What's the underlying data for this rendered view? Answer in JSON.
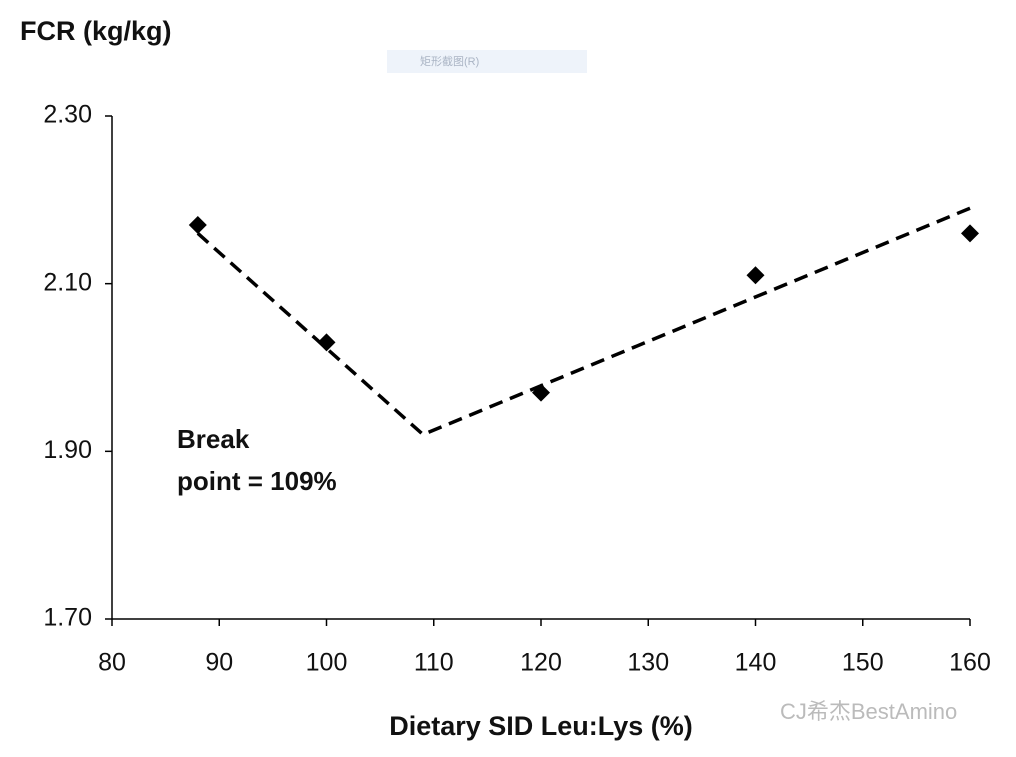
{
  "chart_data": {
    "type": "scatter",
    "y_title": "FCR (kg/kg)",
    "x_title": "Dietary SID Leu:Lys (%)",
    "points": {
      "color": "#000000",
      "x": [
        88,
        100,
        120,
        140,
        160
      ],
      "values": [
        2.17,
        2.03,
        1.97,
        2.11,
        2.16
      ]
    },
    "fit": {
      "color": "#000000",
      "x": [
        88,
        109,
        160
      ],
      "values": [
        2.16,
        1.92,
        2.19
      ]
    },
    "annotation": [
      "Break",
      "point = 109%"
    ],
    "xlim": [
      80,
      160
    ],
    "xticks": [
      80,
      90,
      100,
      110,
      120,
      130,
      140,
      150,
      160
    ],
    "ylim": [
      1.7,
      2.3
    ],
    "yticks": [
      {
        "value": 1.7,
        "label": "1.70"
      },
      {
        "value": 1.9,
        "label": "1.90"
      },
      {
        "value": 2.1,
        "label": "2.10"
      },
      {
        "value": 2.3,
        "label": "2.30"
      }
    ],
    "grid": false,
    "overlay_label": "矩形截图(R)",
    "watermark": "CJ希杰BestAmino"
  }
}
